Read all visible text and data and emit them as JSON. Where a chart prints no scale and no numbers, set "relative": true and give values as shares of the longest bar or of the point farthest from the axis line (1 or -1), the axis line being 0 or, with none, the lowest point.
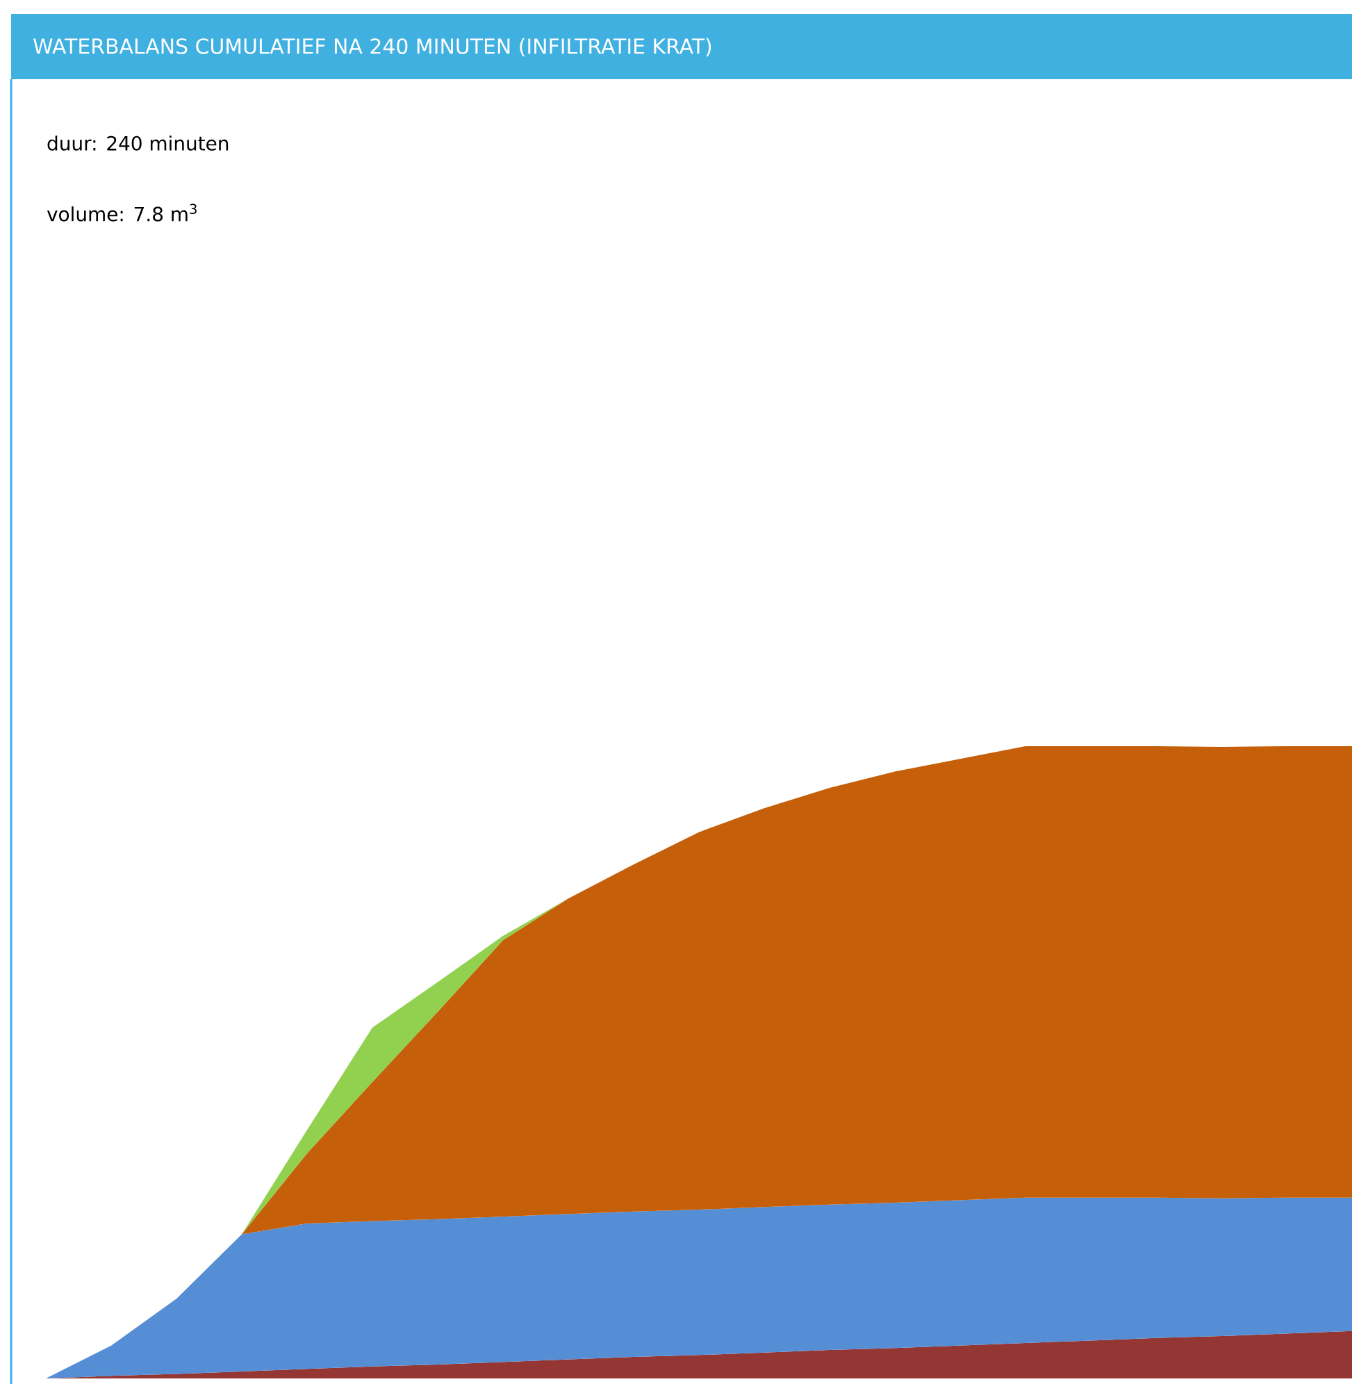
{
  "chart_data": {
    "type": "area",
    "stacked": true,
    "relative": true,
    "title": "WATERBALANS CUMULATIEF NA 240 MINUTEN (INFILTRATIE KRAT)",
    "annotations": [
      "duur: 240 minuten",
      "volume: 7.8 m$^{3}$"
    ],
    "categories": [
      null,
      null,
      null,
      null,
      null,
      null,
      null,
      null,
      null,
      null,
      null,
      null,
      null,
      null,
      null,
      null,
      null,
      null,
      null,
      null,
      null
    ],
    "series": [
      {
        "color": "#943634",
        "values": [
          0,
          0.004,
          0.007,
          0.011,
          0.015,
          0.019,
          0.022,
          0.026,
          0.03,
          0.034,
          0.037,
          0.041,
          0.045,
          0.048,
          0.052,
          0.056,
          0.06,
          0.064,
          0.067,
          0.071,
          0.075
        ]
      },
      {
        "color": "#558ed5",
        "values": [
          0,
          0.048,
          0.119,
          0.217,
          0.23,
          0.23,
          0.23,
          0.23,
          0.23,
          0.23,
          0.23,
          0.23,
          0.23,
          0.23,
          0.23,
          0.23,
          0.226,
          0.222,
          0.218,
          0.215,
          0.211
        ]
      },
      {
        "color": "#c65f09",
        "values": [
          0,
          0,
          0,
          0,
          0.111,
          0.22,
          0.328,
          0.437,
          0.499,
          0.549,
          0.597,
          0.631,
          0.659,
          0.682,
          0.698,
          0.714,
          0.714,
          0.714,
          0.714,
          0.714,
          0.714
        ]
      },
      {
        "color": "#92d050",
        "values": [
          null,
          null,
          null,
          0,
          0.037,
          0.086,
          0.047,
          0.007,
          0,
          null,
          null,
          null,
          null,
          null,
          null,
          null,
          null,
          null,
          null,
          null,
          null
        ]
      }
    ]
  }
}
